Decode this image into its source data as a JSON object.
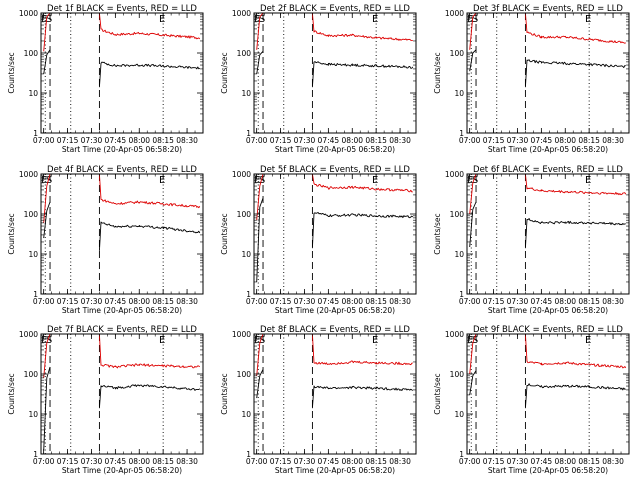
{
  "chart_data": [
    {
      "type": "line",
      "title": "Det 1f BLACK = Events, RED = LLD",
      "xlabel": "Start Time (20-Apr-05 06:58:20)",
      "ylabel": "Counts/sec",
      "x_tick_labels": [
        "07:00",
        "07:15",
        "07:30",
        "07:45",
        "08:00",
        "08:15",
        "08:30"
      ],
      "y_tick_labels": [
        "1",
        "10",
        "100",
        "1000"
      ],
      "yscale": "log",
      "ylim": [
        1,
        1000
      ],
      "xlim": [
        "06:58:20",
        "08:40"
      ],
      "markers": [
        {
          "label": "E",
          "time": "07:01",
          "style": "dotted"
        },
        {
          "label": "S",
          "time": "07:04",
          "style": "dashed"
        },
        {
          "label": "",
          "time": "07:17",
          "style": "dotted"
        },
        {
          "label": "",
          "time": "07:35",
          "style": "dashed"
        },
        {
          "label": "E",
          "time": "08:15",
          "style": "dotted"
        }
      ],
      "series": [
        {
          "name": "RED",
          "color": "#dd0000",
          "x": [
            "07:00",
            "07:02",
            "07:04",
            "07:35",
            "07:36",
            "07:45",
            "08:00",
            "08:15",
            "08:38"
          ],
          "values": [
            110,
            800,
            1000,
            1000,
            380,
            290,
            310,
            280,
            240
          ]
        },
        {
          "name": "BLACK",
          "color": "#000000",
          "x": [
            "07:00",
            "07:02",
            "07:04",
            "07:35",
            "07:36",
            "07:45",
            "08:00",
            "08:15",
            "08:38"
          ],
          "values": [
            30,
            90,
            120,
            14,
            58,
            48,
            50,
            47,
            42
          ]
        }
      ]
    },
    {
      "type": "line",
      "title": "Det 2f BLACK = Events, RED = LLD",
      "xlabel": "Start Time (20-Apr-05 06:58:20)",
      "ylabel": "Counts/sec",
      "x_tick_labels": [
        "07:00",
        "07:15",
        "07:30",
        "07:45",
        "08:00",
        "08:15",
        "08:30"
      ],
      "y_tick_labels": [
        "1",
        "10",
        "100",
        "1000"
      ],
      "yscale": "log",
      "ylim": [
        1,
        1000
      ],
      "xlim": [
        "06:58:20",
        "08:40"
      ],
      "markers": [
        {
          "label": "E",
          "time": "07:01",
          "style": "dotted"
        },
        {
          "label": "S",
          "time": "07:04",
          "style": "dashed"
        },
        {
          "label": "",
          "time": "07:17",
          "style": "dotted"
        },
        {
          "label": "",
          "time": "07:35",
          "style": "dashed"
        },
        {
          "label": "E",
          "time": "08:15",
          "style": "dotted"
        }
      ],
      "series": [
        {
          "name": "RED",
          "color": "#dd0000",
          "x": [
            "07:00",
            "07:02",
            "07:04",
            "07:35",
            "07:36",
            "07:45",
            "08:00",
            "08:15",
            "08:38"
          ],
          "values": [
            120,
            800,
            1000,
            1000,
            350,
            270,
            280,
            240,
            210
          ]
        },
        {
          "name": "BLACK",
          "color": "#000000",
          "x": [
            "07:00",
            "07:02",
            "07:04",
            "07:35",
            "07:36",
            "07:45",
            "08:00",
            "08:15",
            "08:38"
          ],
          "values": [
            30,
            90,
            110,
            14,
            60,
            52,
            50,
            48,
            44
          ]
        }
      ]
    },
    {
      "type": "line",
      "title": "Det 3f BLACK = Events, RED = LLD",
      "xlabel": "Start Time (20-Apr-05 06:58:20)",
      "ylabel": "Counts/sec",
      "x_tick_labels": [
        "07:00",
        "07:15",
        "07:30",
        "07:45",
        "08:00",
        "08:15",
        "08:30"
      ],
      "y_tick_labels": [
        "1",
        "10",
        "100",
        "1000"
      ],
      "yscale": "log",
      "ylim": [
        1,
        1000
      ],
      "xlim": [
        "06:58:20",
        "08:40"
      ],
      "markers": [
        {
          "label": "E",
          "time": "07:01",
          "style": "dotted"
        },
        {
          "label": "S",
          "time": "07:04",
          "style": "dashed"
        },
        {
          "label": "",
          "time": "07:17",
          "style": "dotted"
        },
        {
          "label": "",
          "time": "07:35",
          "style": "dashed"
        },
        {
          "label": "E",
          "time": "08:15",
          "style": "dotted"
        }
      ],
      "series": [
        {
          "name": "RED",
          "color": "#dd0000",
          "x": [
            "07:00",
            "07:02",
            "07:04",
            "07:35",
            "07:36",
            "07:45",
            "08:00",
            "08:15",
            "08:38"
          ],
          "values": [
            120,
            800,
            1000,
            1000,
            330,
            250,
            250,
            220,
            180
          ]
        },
        {
          "name": "BLACK",
          "color": "#000000",
          "x": [
            "07:00",
            "07:02",
            "07:04",
            "07:35",
            "07:36",
            "07:45",
            "08:00",
            "08:15",
            "08:38"
          ],
          "values": [
            35,
            100,
            120,
            14,
            65,
            58,
            55,
            52,
            45
          ]
        }
      ]
    },
    {
      "type": "line",
      "title": "Det 4f BLACK = Events, RED = LLD",
      "xlabel": "Start Time (20-Apr-05 06:58:20)",
      "ylabel": "Counts/sec",
      "x_tick_labels": [
        "07:00",
        "07:15",
        "07:30",
        "07:45",
        "08:00",
        "08:15",
        "08:30"
      ],
      "y_tick_labels": [
        "1",
        "10",
        "100",
        "1000"
      ],
      "yscale": "log",
      "ylim": [
        1,
        1000
      ],
      "xlim": [
        "06:58:20",
        "08:40"
      ],
      "markers": [
        {
          "label": "E",
          "time": "07:01",
          "style": "dotted"
        },
        {
          "label": "S",
          "time": "07:04",
          "style": "dashed"
        },
        {
          "label": "",
          "time": "07:17",
          "style": "dotted"
        },
        {
          "label": "",
          "time": "07:35",
          "style": "dashed"
        },
        {
          "label": "E",
          "time": "08:15",
          "style": "dotted"
        }
      ],
      "series": [
        {
          "name": "RED",
          "color": "#dd0000",
          "x": [
            "07:00",
            "07:02",
            "07:04",
            "07:35",
            "07:36",
            "07:45",
            "08:00",
            "08:15",
            "08:38"
          ],
          "values": [
            60,
            500,
            1000,
            1000,
            230,
            180,
            200,
            180,
            150
          ]
        },
        {
          "name": "BLACK",
          "color": "#000000",
          "x": [
            "07:00",
            "07:02",
            "07:04",
            "07:35",
            "07:36",
            "07:45",
            "08:00",
            "08:15",
            "08:38"
          ],
          "values": [
            25,
            120,
            200,
            12,
            60,
            48,
            50,
            45,
            35
          ]
        }
      ]
    },
    {
      "type": "line",
      "title": "Det 5f BLACK = Events, RED = LLD",
      "xlabel": "Start Time (20-Apr-05 06:58:20)",
      "ylabel": "Counts/sec",
      "x_tick_labels": [
        "07:00",
        "07:15",
        "07:30",
        "07:45",
        "08:00",
        "08:15",
        "08:30"
      ],
      "y_tick_labels": [
        "1",
        "10",
        "100",
        "1000"
      ],
      "yscale": "log",
      "ylim": [
        1,
        1000
      ],
      "xlim": [
        "06:58:20",
        "08:40"
      ],
      "markers": [
        {
          "label": "E",
          "time": "07:01",
          "style": "dotted"
        },
        {
          "label": "S",
          "time": "07:04",
          "style": "dashed"
        },
        {
          "label": "",
          "time": "07:17",
          "style": "dotted"
        },
        {
          "label": "",
          "time": "07:35",
          "style": "dashed"
        },
        {
          "label": "E",
          "time": "08:15",
          "style": "dotted"
        }
      ],
      "series": [
        {
          "name": "RED",
          "color": "#dd0000",
          "x": [
            "07:00",
            "07:02",
            "07:04",
            "07:35",
            "07:36",
            "07:45",
            "08:00",
            "08:15",
            "08:38"
          ],
          "values": [
            70,
            500,
            1000,
            1000,
            550,
            450,
            470,
            420,
            380
          ]
        },
        {
          "name": "BLACK",
          "color": "#000000",
          "x": [
            "07:00",
            "07:02",
            "07:04",
            "07:35",
            "07:36",
            "07:45",
            "08:00",
            "08:15",
            "08:38"
          ],
          "values": [
            2,
            150,
            250,
            14,
            110,
            90,
            95,
            90,
            85
          ]
        }
      ]
    },
    {
      "type": "line",
      "title": "Det 6f BLACK = Events, RED = LLD",
      "xlabel": "Start Time (20-Apr-05 06:58:20)",
      "ylabel": "Counts/sec",
      "x_tick_labels": [
        "07:00",
        "07:15",
        "07:30",
        "07:45",
        "08:00",
        "08:15",
        "08:30"
      ],
      "y_tick_labels": [
        "1",
        "10",
        "100",
        "1000"
      ],
      "yscale": "log",
      "ylim": [
        1,
        1000
      ],
      "xlim": [
        "06:58:20",
        "08:40"
      ],
      "markers": [
        {
          "label": "E",
          "time": "07:01",
          "style": "dotted"
        },
        {
          "label": "S",
          "time": "07:04",
          "style": "dashed"
        },
        {
          "label": "",
          "time": "07:17",
          "style": "dotted"
        },
        {
          "label": "",
          "time": "07:35",
          "style": "dashed"
        },
        {
          "label": "E",
          "time": "08:15",
          "style": "dotted"
        }
      ],
      "series": [
        {
          "name": "RED",
          "color": "#dd0000",
          "x": [
            "07:00",
            "07:02",
            "07:04",
            "07:35",
            "07:36",
            "07:45",
            "08:00",
            "08:15",
            "08:38"
          ],
          "values": [
            100,
            600,
            1000,
            1000,
            450,
            380,
            360,
            340,
            320
          ]
        },
        {
          "name": "BLACK",
          "color": "#000000",
          "x": [
            "07:00",
            "07:02",
            "07:04",
            "07:35",
            "07:36",
            "07:45",
            "08:00",
            "08:15",
            "08:38"
          ],
          "values": [
            15,
            130,
            200,
            14,
            75,
            60,
            62,
            60,
            55
          ]
        }
      ]
    },
    {
      "type": "line",
      "title": "Det 7f BLACK = Events, RED = LLD",
      "xlabel": "Start Time (20-Apr-05 06:58:20)",
      "ylabel": "Counts/sec",
      "x_tick_labels": [
        "07:00",
        "07:15",
        "07:30",
        "07:45",
        "08:00",
        "08:15",
        "08:30"
      ],
      "y_tick_labels": [
        "1",
        "10",
        "100",
        "1000"
      ],
      "yscale": "log",
      "ylim": [
        1,
        1000
      ],
      "xlim": [
        "06:58:20",
        "08:40"
      ],
      "markers": [
        {
          "label": "E",
          "time": "07:01",
          "style": "dotted"
        },
        {
          "label": "S",
          "time": "07:04",
          "style": "dashed"
        },
        {
          "label": "",
          "time": "07:17",
          "style": "dotted"
        },
        {
          "label": "",
          "time": "07:35",
          "style": "dashed"
        },
        {
          "label": "E",
          "time": "08:15",
          "style": "dotted"
        }
      ],
      "series": [
        {
          "name": "RED",
          "color": "#dd0000",
          "x": [
            "07:00",
            "07:02",
            "07:04",
            "07:35",
            "07:36",
            "07:45",
            "08:00",
            "08:15",
            "08:38"
          ],
          "values": [
            80,
            600,
            1000,
            1000,
            170,
            150,
            170,
            160,
            150
          ]
        },
        {
          "name": "BLACK",
          "color": "#000000",
          "x": [
            "07:00",
            "07:02",
            "07:04",
            "07:35",
            "07:36",
            "07:45",
            "08:00",
            "08:15",
            "08:38"
          ],
          "values": [
            1.2,
            80,
            150,
            14,
            50,
            45,
            52,
            48,
            40
          ]
        }
      ]
    },
    {
      "type": "line",
      "title": "Det 8f BLACK = Events, RED = LLD",
      "xlabel": "Start Time (20-Apr-05 06:58:20)",
      "ylabel": "Counts/sec",
      "x_tick_labels": [
        "07:00",
        "07:15",
        "07:30",
        "07:45",
        "08:00",
        "08:15",
        "08:30"
      ],
      "y_tick_labels": [
        "1",
        "10",
        "100",
        "1000"
      ],
      "yscale": "log",
      "ylim": [
        1,
        1000
      ],
      "xlim": [
        "06:58:20",
        "08:40"
      ],
      "markers": [
        {
          "label": "E",
          "time": "07:01",
          "style": "dotted"
        },
        {
          "label": "S",
          "time": "07:04",
          "style": "dashed"
        },
        {
          "label": "",
          "time": "07:17",
          "style": "dotted"
        },
        {
          "label": "",
          "time": "07:35",
          "style": "dashed"
        },
        {
          "label": "E",
          "time": "08:15",
          "style": "dotted"
        }
      ],
      "series": [
        {
          "name": "RED",
          "color": "#dd0000",
          "x": [
            "07:00",
            "07:02",
            "07:04",
            "07:35",
            "07:36",
            "07:45",
            "08:00",
            "08:15",
            "08:38"
          ],
          "values": [
            90,
            600,
            1000,
            1000,
            190,
            180,
            200,
            190,
            180
          ]
        },
        {
          "name": "BLACK",
          "color": "#000000",
          "x": [
            "07:00",
            "07:02",
            "07:04",
            "07:35",
            "07:36",
            "07:45",
            "08:00",
            "08:15",
            "08:38"
          ],
          "values": [
            25,
            90,
            130,
            14,
            48,
            44,
            46,
            44,
            40
          ]
        }
      ]
    },
    {
      "type": "line",
      "title": "Det 9f BLACK = Events, RED = LLD",
      "xlabel": "Start Time (20-Apr-05 06:58:20)",
      "ylabel": "Counts/sec",
      "x_tick_labels": [
        "07:00",
        "07:15",
        "07:30",
        "07:45",
        "08:00",
        "08:15",
        "08:30"
      ],
      "y_tick_labels": [
        "1",
        "10",
        "100",
        "1000"
      ],
      "yscale": "log",
      "ylim": [
        1,
        1000
      ],
      "xlim": [
        "06:58:20",
        "08:40"
      ],
      "markers": [
        {
          "label": "E",
          "time": "07:01",
          "style": "dotted"
        },
        {
          "label": "S",
          "time": "07:04",
          "style": "dashed"
        },
        {
          "label": "",
          "time": "07:17",
          "style": "dotted"
        },
        {
          "label": "",
          "time": "07:35",
          "style": "dashed"
        },
        {
          "label": "E",
          "time": "08:15",
          "style": "dotted"
        }
      ],
      "series": [
        {
          "name": "RED",
          "color": "#dd0000",
          "x": [
            "07:00",
            "07:02",
            "07:04",
            "07:35",
            "07:36",
            "07:45",
            "08:00",
            "08:15",
            "08:38"
          ],
          "values": [
            100,
            600,
            1000,
            1000,
            200,
            180,
            190,
            170,
            150
          ]
        },
        {
          "name": "BLACK",
          "color": "#000000",
          "x": [
            "07:00",
            "07:02",
            "07:04",
            "07:35",
            "07:36",
            "07:45",
            "08:00",
            "08:15",
            "08:38"
          ],
          "values": [
            30,
            90,
            120,
            14,
            55,
            48,
            50,
            48,
            42
          ]
        }
      ]
    }
  ]
}
